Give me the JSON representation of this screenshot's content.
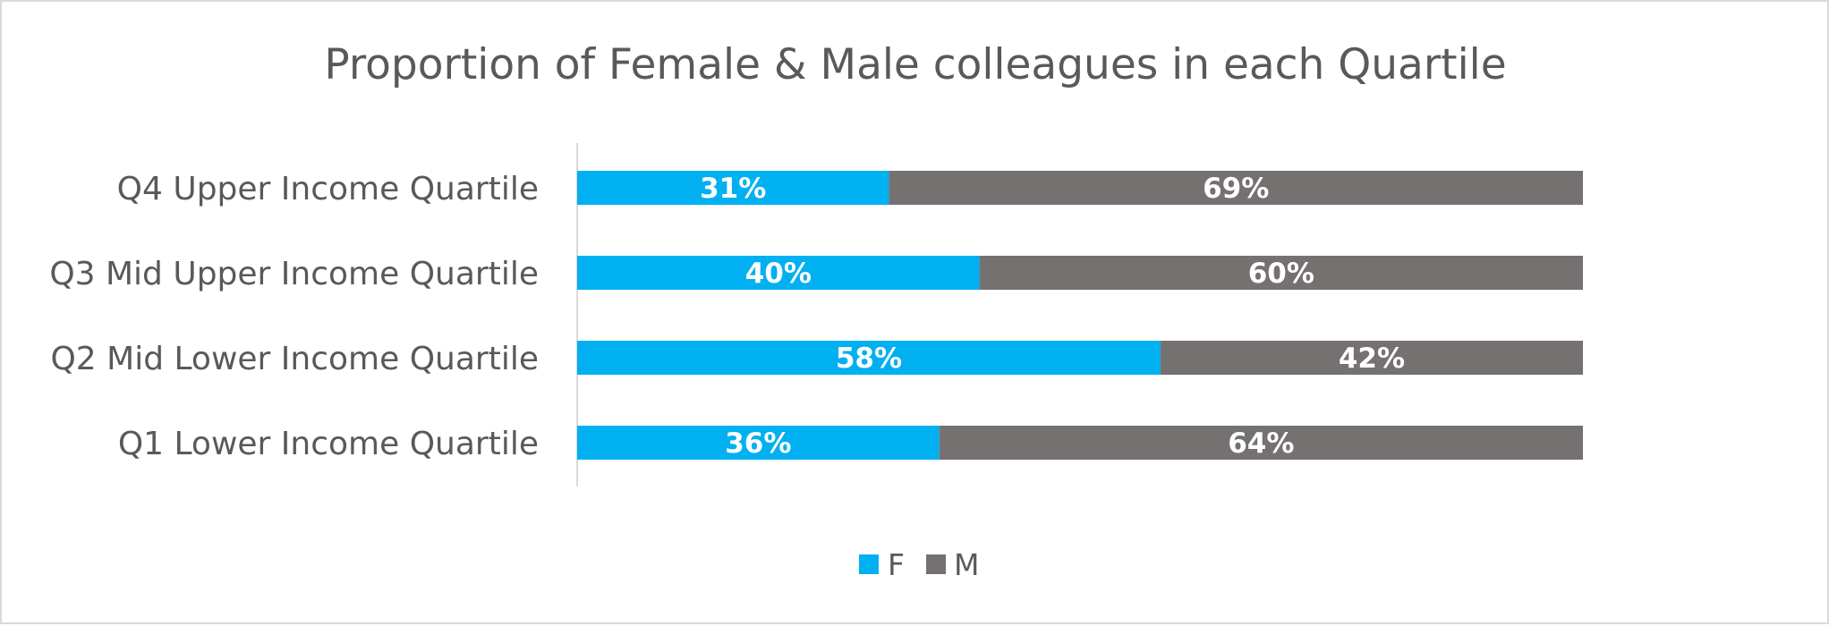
{
  "chart_data": {
    "type": "bar",
    "orientation": "horizontal",
    "stacked": true,
    "title": "Proportion of Female & Male colleagues in each Quartile",
    "categories": [
      "Q4 Upper Income Quartile",
      "Q3 Mid Upper Income Quartile",
      "Q2 Mid Lower Income Quartile",
      "Q1 Lower Income Quartile"
    ],
    "series": [
      {
        "name": "F",
        "color": "#00b0f0",
        "values": [
          31,
          40,
          58,
          36
        ],
        "labels": [
          "31%",
          "40%",
          "58%",
          "36%"
        ]
      },
      {
        "name": "M",
        "color": "#767171",
        "values": [
          69,
          60,
          42,
          64
        ],
        "labels": [
          "69%",
          "60%",
          "42%",
          "64%"
        ]
      }
    ],
    "xlim": [
      0,
      100
    ],
    "grid": false,
    "legend_position": "bottom"
  }
}
